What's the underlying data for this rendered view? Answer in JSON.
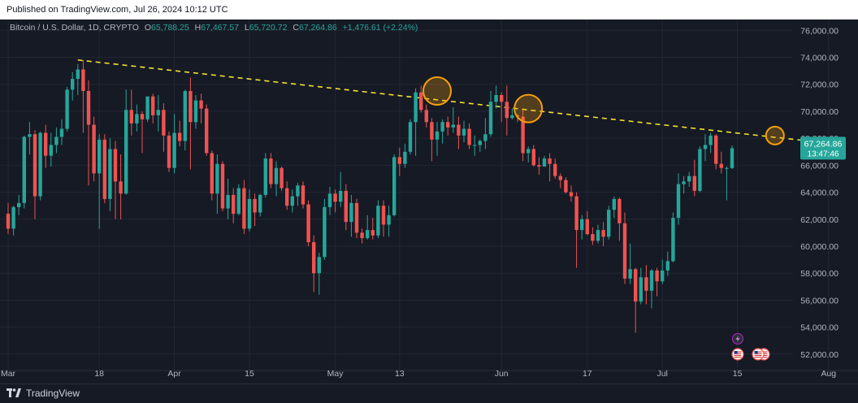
{
  "header": {
    "published": "Published on TradingView.com, Jul 26, 2024 10:12 UTC"
  },
  "legend": {
    "symbol": "Bitcoin / U.S. Dollar, 1D, CRYPTO",
    "o_label": "O",
    "o_value": "65,788.25",
    "h_label": "H",
    "h_value": "67,467.57",
    "l_label": "L",
    "l_value": "65,720.72",
    "c_label": "C",
    "c_value": "67,264.86",
    "change": "+1,476.61 (+2.24%)"
  },
  "price_tag": {
    "price": "67,264.86",
    "countdown": "13:47:46"
  },
  "footer": {
    "brand": "TradingView"
  },
  "colors": {
    "up": "#26a69a",
    "down": "#ef5350",
    "trendline": "#f5e12e",
    "highlight": "#f59e0b",
    "background": "#161a25",
    "price_tag": "#26a69a"
  },
  "icons": [
    "lightning-event-icon",
    "us-flag-event-icon"
  ],
  "chart_data": {
    "type": "candlestick",
    "title": "Bitcoin / U.S. Dollar, 1D, CRYPTO",
    "y_ticks": [
      "52,000.00",
      "54,000.00",
      "56,000.00",
      "58,000.00",
      "60,000.00",
      "62,000.00",
      "64,000.00",
      "66,000.00",
      "68,000.00",
      "70,000.00",
      "72,000.00",
      "74,000.00",
      "76,000.00"
    ],
    "ylim": [
      50850,
      76800
    ],
    "x_ticks": [
      {
        "label": "Mar",
        "date": "2024-03-01"
      },
      {
        "label": "18",
        "date": "2024-03-18"
      },
      {
        "label": "Apr",
        "date": "2024-04-01"
      },
      {
        "label": "15",
        "date": "2024-04-15"
      },
      {
        "label": "May",
        "date": "2024-05-01"
      },
      {
        "label": "13",
        "date": "2024-05-13"
      },
      {
        "label": "Jun",
        "date": "2024-06-01"
      },
      {
        "label": "17",
        "date": "2024-06-17"
      },
      {
        "label": "Jul",
        "date": "2024-07-01"
      },
      {
        "label": "15",
        "date": "2024-07-15"
      },
      {
        "label": "Aug",
        "date": "2024-08-01"
      }
    ],
    "start_date": "2024-03-01",
    "candles": [
      [
        62400,
        63200,
        60900,
        61300
      ],
      [
        61300,
        63000,
        60800,
        62900
      ],
      [
        62900,
        63800,
        62300,
        63200
      ],
      [
        63200,
        68200,
        62800,
        68100
      ],
      [
        68100,
        69200,
        66800,
        68300
      ],
      [
        68300,
        68600,
        62000,
        63700
      ],
      [
        63700,
        68500,
        63400,
        68400
      ],
      [
        68400,
        69000,
        65800,
        66700
      ],
      [
        66700,
        68400,
        65900,
        67500
      ],
      [
        67500,
        68800,
        66900,
        68100
      ],
      [
        68100,
        69400,
        67500,
        68700
      ],
      [
        68700,
        71800,
        68500,
        71600
      ],
      [
        71600,
        72900,
        70800,
        72400
      ],
      [
        72400,
        73500,
        71200,
        73100
      ],
      [
        73100,
        73800,
        68400,
        71500
      ],
      [
        71500,
        72300,
        64500,
        69000
      ],
      [
        69000,
        69600,
        64800,
        65400
      ],
      [
        65400,
        68300,
        61300,
        67900
      ],
      [
        67900,
        68300,
        63200,
        63500
      ],
      [
        63500,
        68000,
        62600,
        67200
      ],
      [
        67200,
        67800,
        62000,
        64800
      ],
      [
        64800,
        66800,
        62000,
        63900
      ],
      [
        63900,
        71600,
        63800,
        70100
      ],
      [
        70100,
        71600,
        68200,
        69100
      ],
      [
        69100,
        70500,
        68500,
        69800
      ],
      [
        69800,
        70000,
        66900,
        69400
      ],
      [
        69400,
        71000,
        69200,
        71100
      ],
      [
        71100,
        71300,
        69100,
        69700
      ],
      [
        69700,
        71200,
        68500,
        70100
      ],
      [
        70100,
        70600,
        67000,
        68200
      ],
      [
        68200,
        68500,
        65500,
        65800
      ],
      [
        65800,
        69800,
        65400,
        68400
      ],
      [
        68400,
        69300,
        67400,
        67800
      ],
      [
        67800,
        71600,
        67100,
        71500
      ],
      [
        71500,
        72500,
        65700,
        69200
      ],
      [
        69200,
        71200,
        68700,
        70800
      ],
      [
        70800,
        71300,
        69100,
        70200
      ],
      [
        70200,
        70500,
        66700,
        66900
      ],
      [
        66900,
        67100,
        63400,
        63900
      ],
      [
        63900,
        66800,
        62400,
        66100
      ],
      [
        66100,
        66300,
        62600,
        62800
      ],
      [
        62800,
        65000,
        62000,
        63800
      ],
      [
        63800,
        64300,
        61700,
        62400
      ],
      [
        62400,
        64600,
        62300,
        64300
      ],
      [
        64300,
        64900,
        60900,
        61300
      ],
      [
        61300,
        64200,
        61100,
        63500
      ],
      [
        63500,
        63900,
        61500,
        62500
      ],
      [
        62500,
        63900,
        62200,
        63800
      ],
      [
        63800,
        66900,
        63600,
        66500
      ],
      [
        66500,
        66900,
        64300,
        64600
      ],
      [
        64600,
        66300,
        63700,
        65800
      ],
      [
        65800,
        65900,
        64100,
        64300
      ],
      [
        64300,
        64800,
        62700,
        63000
      ],
      [
        63000,
        64200,
        62500,
        63700
      ],
      [
        63700,
        64700,
        63000,
        64500
      ],
      [
        64500,
        64800,
        62800,
        63100
      ],
      [
        63100,
        63400,
        60000,
        60300
      ],
      [
        60300,
        60800,
        56600,
        58000
      ],
      [
        58000,
        59500,
        56400,
        59200
      ],
      [
        59200,
        63500,
        59000,
        62900
      ],
      [
        62900,
        64400,
        62300,
        63900
      ],
      [
        63900,
        64200,
        62500,
        63300
      ],
      [
        63300,
        65500,
        62900,
        64100
      ],
      [
        64100,
        64600,
        61200,
        61800
      ],
      [
        61800,
        63800,
        60700,
        63200
      ],
      [
        63200,
        63500,
        60600,
        61000
      ],
      [
        61000,
        61300,
        60200,
        60600
      ],
      [
        60600,
        62300,
        60500,
        61200
      ],
      [
        61200,
        62100,
        60500,
        60800
      ],
      [
        60800,
        63400,
        60600,
        63000
      ],
      [
        63000,
        63400,
        60700,
        61600
      ],
      [
        61600,
        63000,
        60700,
        62300
      ],
      [
        62300,
        66800,
        62200,
        66600
      ],
      [
        66600,
        67300,
        65200,
        66100
      ],
      [
        66100,
        67600,
        65800,
        67000
      ],
      [
        67000,
        69400,
        66800,
        69200
      ],
      [
        69200,
        71700,
        66700,
        71400
      ],
      [
        71400,
        71900,
        69900,
        70100
      ],
      [
        70100,
        70500,
        68800,
        69200
      ],
      [
        69200,
        69500,
        66300,
        67900
      ],
      [
        67900,
        69200,
        66700,
        68500
      ],
      [
        68500,
        69400,
        67600,
        69200
      ],
      [
        69200,
        69600,
        68200,
        68800
      ],
      [
        68800,
        70300,
        68400,
        69000
      ],
      [
        69000,
        69600,
        67200,
        68200
      ],
      [
        68200,
        69300,
        67700,
        68700
      ],
      [
        68700,
        69100,
        67200,
        67500
      ],
      [
        67500,
        68200,
        66700,
        67500
      ],
      [
        67500,
        67900,
        67000,
        67800
      ],
      [
        67800,
        69500,
        67200,
        68300
      ],
      [
        68300,
        71500,
        68100,
        70700
      ],
      [
        70700,
        71900,
        70200,
        71200
      ],
      [
        71200,
        71400,
        69200,
        70700
      ],
      [
        70700,
        71900,
        68200,
        69500
      ],
      [
        69500,
        70200,
        69400,
        69700
      ],
      [
        69700,
        69800,
        69200,
        69600
      ],
      [
        69600,
        70100,
        66300,
        66900
      ],
      [
        66900,
        67400,
        66200,
        67200
      ],
      [
        67200,
        67500,
        65900,
        66000
      ],
      [
        66000,
        66600,
        65300,
        65900
      ],
      [
        65900,
        66700,
        65900,
        66500
      ],
      [
        66500,
        66900,
        64800,
        66100
      ],
      [
        66100,
        66500,
        65000,
        65200
      ],
      [
        65200,
        65400,
        64300,
        64900
      ],
      [
        64900,
        65100,
        63900,
        64000
      ],
      [
        64000,
        64500,
        63300,
        63700
      ],
      [
        63700,
        64000,
        58400,
        61200
      ],
      [
        61200,
        62300,
        60500,
        62000
      ],
      [
        62000,
        62600,
        60800,
        60900
      ],
      [
        60900,
        61400,
        60100,
        60400
      ],
      [
        60400,
        61600,
        60200,
        61200
      ],
      [
        61200,
        61800,
        60000,
        60700
      ],
      [
        60700,
        63000,
        60500,
        62700
      ],
      [
        62700,
        63700,
        62100,
        63500
      ],
      [
        63500,
        63600,
        60400,
        61700
      ],
      [
        61700,
        62500,
        57200,
        57600
      ],
      [
        57600,
        60200,
        57200,
        58300
      ],
      [
        58300,
        58400,
        53600,
        55900
      ],
      [
        55900,
        58400,
        55700,
        57700
      ],
      [
        57700,
        58600,
        55700,
        56700
      ],
      [
        56700,
        58300,
        55400,
        58200
      ],
      [
        58200,
        58400,
        56300,
        57400
      ],
      [
        57400,
        59000,
        57200,
        58200
      ],
      [
        58200,
        59600,
        57800,
        58900
      ],
      [
        58900,
        62500,
        58800,
        62100
      ],
      [
        62100,
        65400,
        61600,
        64600
      ],
      [
        64600,
        65200,
        63900,
        64800
      ],
      [
        64800,
        65500,
        64400,
        65200
      ],
      [
        65200,
        66400,
        63700,
        64100
      ],
      [
        64100,
        67400,
        64000,
        67200
      ],
      [
        67200,
        68300,
        66300,
        67500
      ],
      [
        67500,
        68400,
        66900,
        68200
      ],
      [
        68200,
        68300,
        65700,
        66100
      ],
      [
        66100,
        67000,
        65400,
        65800
      ],
      [
        65800,
        65900,
        63400,
        65800
      ],
      [
        65788,
        67468,
        65721,
        67265
      ]
    ],
    "trendline": {
      "x1": "2024-03-14",
      "y1": 73800,
      "x2": "2024-08-04",
      "y2": 67500
    },
    "highlights": [
      {
        "date": "2024-05-20",
        "price": 71500,
        "r": 17
      },
      {
        "date": "2024-06-06",
        "price": 70200,
        "r": 17
      },
      {
        "date": "2024-07-22",
        "price": 68200,
        "r": 11
      }
    ],
    "last_price": 67264.86
  }
}
